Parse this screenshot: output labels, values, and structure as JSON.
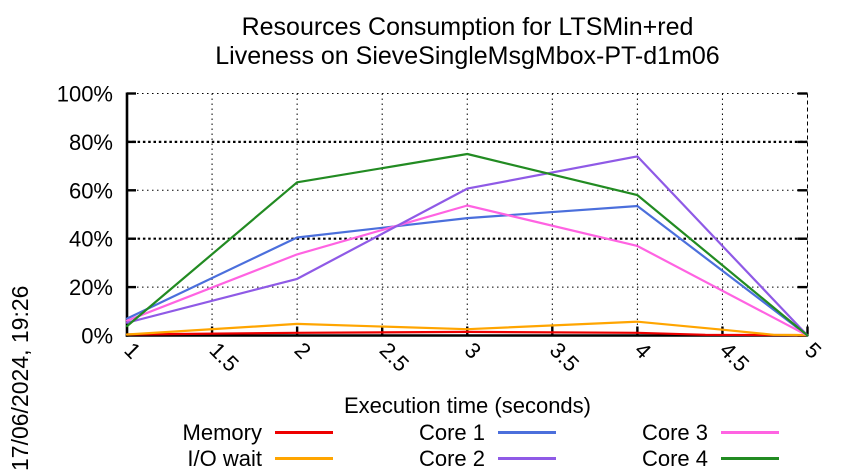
{
  "timestamp": "17/06/2024, 19:26",
  "title": {
    "line1": "Resources Consumption for LTSMin+red",
    "line2": "Liveness on SieveSingleMsgMbox-PT-d1m06"
  },
  "legend": {
    "columns": [
      [
        0,
        1
      ],
      [
        2,
        3
      ],
      [
        4,
        5
      ]
    ]
  },
  "chart_data": {
    "type": "line",
    "title": "Resources Consumption for LTSMin+red",
    "subtitle": "Liveness on SieveSingleMsgMbox-PT-d1m06",
    "xlabel": "Execution time (seconds)",
    "ylabel": "",
    "xlim": [
      1,
      5
    ],
    "ylim": [
      0,
      100
    ],
    "x_ticks": [
      "1",
      "1.5",
      "2",
      "2.5",
      "3",
      "3.5",
      "4",
      "4.5",
      "5"
    ],
    "y_ticks": [
      "0%",
      "20%",
      "40%",
      "60%",
      "80%",
      "100%"
    ],
    "grid": true,
    "legend_position": "bottom",
    "axis_color": "#000000",
    "series": [
      {
        "name": "Memory",
        "color": "#ee0000",
        "points": [
          [
            1,
            0.4
          ],
          [
            2,
            1.1
          ],
          [
            3,
            1.5
          ],
          [
            4,
            1.1
          ],
          [
            4.4,
            0.3
          ],
          [
            5,
            0.15
          ]
        ]
      },
      {
        "name": "I/O wait",
        "color": "#ffa500",
        "points": [
          [
            1,
            0.4
          ],
          [
            2,
            4.8
          ],
          [
            3,
            2.6
          ],
          [
            4,
            5.7
          ],
          [
            4.5,
            2.4
          ],
          [
            4.8,
            0.3
          ],
          [
            5,
            0.15
          ]
        ]
      },
      {
        "name": "Core 1",
        "color": "#4b6fdc",
        "points": [
          [
            1,
            7.0
          ],
          [
            2,
            40.5
          ],
          [
            3,
            48.5
          ],
          [
            4,
            53.5
          ],
          [
            5,
            0
          ]
        ]
      },
      {
        "name": "Core 2",
        "color": "#8f5ae6",
        "points": [
          [
            1,
            5.3
          ],
          [
            2,
            23.4
          ],
          [
            3,
            60.7
          ],
          [
            4,
            74.0
          ],
          [
            5,
            0
          ]
        ]
      },
      {
        "name": "Core 3",
        "color": "#ff63e2",
        "points": [
          [
            1,
            6.1
          ],
          [
            2,
            33.5
          ],
          [
            3,
            53.7
          ],
          [
            4,
            37.0
          ],
          [
            5,
            0
          ]
        ]
      },
      {
        "name": "Core 4",
        "color": "#228b22",
        "points": [
          [
            1,
            3.9
          ],
          [
            2,
            63.3
          ],
          [
            3,
            75.0
          ],
          [
            4,
            58.0
          ],
          [
            5,
            0
          ]
        ]
      }
    ],
    "draw_order": [
      "Memory",
      "I/O wait",
      "Core 1",
      "Core 3",
      "Core 2",
      "Core 4"
    ]
  }
}
